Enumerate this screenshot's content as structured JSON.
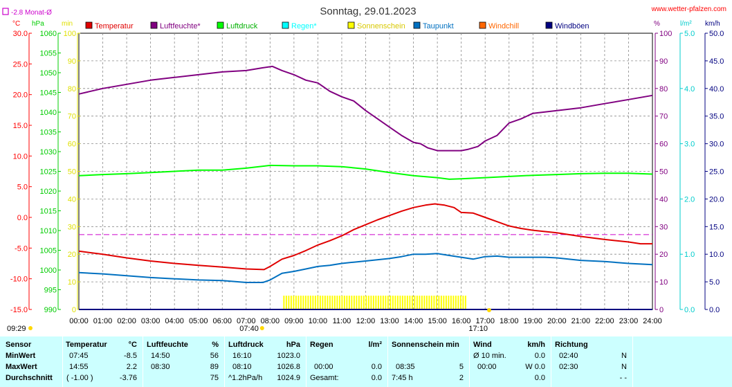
{
  "title": "Sonntag, 29.01.2023",
  "site": "www.wetter-pfalzen.com",
  "monat_label": "-2.8 Monat-Ø",
  "units": {
    "c": "°C",
    "hpa": "hPa",
    "min": "min",
    "pct": "%",
    "lm2": "l/m²",
    "kmh": "km/h"
  },
  "sunrise": "07:40",
  "sunset": "17:10",
  "time_labels": [
    "00:00",
    "01:00",
    "02:00",
    "03:00",
    "04:00",
    "05:00",
    "06:00",
    "07:00",
    "08:00",
    "09:00",
    "10:00",
    "11:00",
    "12:00",
    "13:00",
    "14:00",
    "15:00",
    "16:00",
    "17:00",
    "18:00",
    "19:00",
    "20:00",
    "21:00",
    "22:00",
    "23:00",
    "24:00"
  ],
  "legend": [
    {
      "label": "Temperatur",
      "color": "#e00000"
    },
    {
      "label": "Luftfeuchte*",
      "color": "#800080"
    },
    {
      "label": "Luftdruck",
      "color": "#00ff00"
    },
    {
      "label": "Regen*",
      "color": "#00ffff"
    },
    {
      "label": "Sonnenschein",
      "color": "#ffff00"
    },
    {
      "label": "Taupunkt",
      "color": "#0070c0"
    },
    {
      "label": "Windchill",
      "color": "#ff6600"
    },
    {
      "label": "Windböen",
      "color": "#000080"
    }
  ],
  "axis_ticks": {
    "temp": [
      "30.0",
      "25.0",
      "20.0",
      "15.0",
      "10.0",
      "5.0",
      "0.0",
      "-5.0",
      "-10.0",
      "-15.0"
    ],
    "hpa": [
      "1060",
      "1055",
      "1050",
      "1045",
      "1040",
      "1035",
      "1030",
      "1025",
      "1020",
      "1015",
      "1010",
      "1005",
      "1000",
      "995",
      "990"
    ],
    "min": [
      "100",
      "90",
      "80",
      "70",
      "60",
      "50",
      "40",
      "30",
      "20",
      "10",
      "0"
    ],
    "pct": [
      "100",
      "90",
      "80",
      "70",
      "60",
      "50",
      "40",
      "30",
      "20",
      "10",
      "0"
    ],
    "lm2": [
      "5.0",
      "4.0",
      "3.0",
      "2.0",
      "1.0",
      "0.0"
    ],
    "kmh": [
      "50.0",
      "45.0",
      "40.0",
      "35.0",
      "30.0",
      "25.0",
      "20.0",
      "15.0",
      "10.0",
      "5.0",
      "0.0"
    ]
  },
  "chart_data": {
    "type": "line",
    "title": "Sonntag, 29.01.2023",
    "x_range_hours": [
      0,
      24
    ],
    "axes": {
      "temperature_c": [
        -15,
        30
      ],
      "pressure_hpa": [
        990,
        1060
      ],
      "humidity_pct": [
        0,
        100
      ],
      "sunshine_min": [
        0,
        100
      ],
      "rain_lm2": [
        0,
        5
      ],
      "wind_kmh": [
        0,
        50
      ]
    },
    "grid": true,
    "month_average_temperature_c": -2.8,
    "series": [
      {
        "name": "Luftfeuchte*",
        "axis": "humidity_pct",
        "color": "#800080",
        "x": [
          0,
          1,
          2,
          3,
          4,
          5,
          6,
          7,
          7.7,
          8.1,
          8.5,
          9,
          9.5,
          10,
          10.5,
          11,
          11.5,
          12,
          12.5,
          13,
          13.5,
          14,
          14.3,
          14.6,
          15,
          15.5,
          16,
          16.3,
          16.7,
          17,
          17.5,
          18,
          18.5,
          19,
          20,
          21,
          22,
          23,
          24
        ],
        "y": [
          78,
          80,
          81.5,
          83,
          84,
          85,
          86,
          86.5,
          87.5,
          88,
          86.5,
          85,
          83,
          82,
          79,
          77,
          75.5,
          72,
          69,
          66,
          63,
          60.5,
          60,
          58.5,
          57.5,
          57.5,
          57.5,
          58,
          59,
          61,
          63,
          67.5,
          69,
          71,
          72,
          73,
          74.5,
          76,
          77.5
        ]
      },
      {
        "name": "Luftdruck",
        "axis": "pressure_hpa",
        "color": "#00ff00",
        "x": [
          0,
          1,
          2,
          3,
          4,
          5,
          6,
          7,
          8,
          9,
          10,
          11,
          12,
          13,
          14,
          15,
          15.5,
          16,
          17,
          18,
          19,
          20,
          21,
          22,
          23,
          24
        ],
        "y": [
          1023.9,
          1024.2,
          1024.4,
          1024.7,
          1025.0,
          1025.3,
          1025.3,
          1025.8,
          1026.5,
          1026.4,
          1026.4,
          1026.2,
          1025.6,
          1024.7,
          1023.9,
          1023.4,
          1023.0,
          1023.1,
          1023.4,
          1023.7,
          1024.0,
          1024.2,
          1024.4,
          1024.5,
          1024.5,
          1024.3
        ]
      },
      {
        "name": "Temperatur",
        "axis": "temperature_c",
        "color": "#e00000",
        "x": [
          0,
          1,
          2,
          3,
          4,
          5,
          6,
          7,
          7.75,
          8,
          8.5,
          9,
          9.5,
          10,
          10.5,
          11,
          11.5,
          12,
          12.5,
          13,
          13.5,
          14,
          14.5,
          14.9,
          15.3,
          15.7,
          16,
          16.5,
          17,
          17.5,
          18,
          18.5,
          19,
          20,
          21,
          22,
          23,
          23.5,
          24
        ],
        "y": [
          -5.5,
          -6.0,
          -6.6,
          -7.1,
          -7.5,
          -7.8,
          -8.1,
          -8.4,
          -8.5,
          -8.0,
          -6.8,
          -6.2,
          -5.4,
          -4.5,
          -3.8,
          -3.0,
          -2.0,
          -1.2,
          -0.4,
          0.3,
          1.0,
          1.6,
          2.0,
          2.2,
          2.0,
          1.6,
          0.8,
          0.7,
          0.0,
          -0.7,
          -1.4,
          -1.8,
          -2.1,
          -2.5,
          -3.1,
          -3.6,
          -4.0,
          -4.3,
          -4.3
        ]
      },
      {
        "name": "Taupunkt",
        "axis": "temperature_c",
        "color": "#0070c0",
        "x": [
          0,
          1,
          2,
          3,
          4,
          5,
          6,
          7,
          7.7,
          8,
          8.5,
          9,
          9.5,
          10,
          10.5,
          11,
          11.5,
          12,
          13,
          13.5,
          14,
          14.5,
          15,
          15.5,
          16,
          16.5,
          17,
          17.5,
          18,
          18.5,
          19,
          19.5,
          20,
          21,
          22,
          23,
          24
        ],
        "y": [
          -9.0,
          -9.2,
          -9.5,
          -9.8,
          -10.0,
          -10.2,
          -10.3,
          -10.6,
          -10.6,
          -10.2,
          -9.1,
          -8.8,
          -8.4,
          -8.0,
          -7.8,
          -7.5,
          -7.3,
          -7.1,
          -6.7,
          -6.4,
          -6.0,
          -6.0,
          -5.9,
          -6.2,
          -6.5,
          -6.8,
          -6.4,
          -6.3,
          -6.5,
          -6.5,
          -6.5,
          -6.5,
          -6.6,
          -7.0,
          -7.2,
          -7.5,
          -7.7
        ]
      },
      {
        "name": "Sonnenschein",
        "axis": "sunshine_min",
        "color": "#ffff00",
        "x": [
          8.58,
          16.25
        ],
        "y": [
          5,
          5
        ]
      },
      {
        "name": "Regen*",
        "axis": "rain_lm2",
        "color": "#00ffff",
        "x": [
          0,
          24
        ],
        "y": [
          0,
          0
        ]
      },
      {
        "name": "Windböen",
        "axis": "wind_kmh",
        "color": "#000080",
        "x": [
          0,
          24
        ],
        "y": [
          0,
          0
        ]
      }
    ]
  },
  "stats": {
    "sensor": {
      "head": "Sensor",
      "rows": [
        "MinWert",
        "MaxWert",
        "Durchschnitt"
      ]
    },
    "temp": {
      "head": "Temperatur",
      "unit": "°C",
      "min": [
        "07:45",
        "-8.5"
      ],
      "max": [
        "14:55",
        "2.2"
      ],
      "avg": [
        "( -1.00 )",
        "-3.76"
      ]
    },
    "hum": {
      "head": "Luftfeuchte",
      "unit": "%",
      "min": [
        "14:50",
        "56"
      ],
      "max": [
        "08:30",
        "89"
      ],
      "avg": [
        "",
        "75"
      ]
    },
    "press": {
      "head": "Luftdruck",
      "unit": "hPa",
      "min": [
        "16:10",
        "1023.0"
      ],
      "max": [
        "08:10",
        "1026.8"
      ],
      "avg": [
        "^1.2hPa/h",
        "1024.9"
      ]
    },
    "rain": {
      "head": "Regen",
      "unit": "l/m²",
      "min": [
        "",
        ""
      ],
      "max": [
        "00:00",
        "0.0"
      ],
      "avg": [
        "Gesamt:",
        "0.0"
      ]
    },
    "sun": {
      "head": "Sonnenschein min",
      "unit": "",
      "min": [
        "",
        ""
      ],
      "max": [
        "08:35",
        "5"
      ],
      "avg": [
        "7:45 h",
        "2"
      ]
    },
    "wind": {
      "head": "Wind",
      "unit": "km/h",
      "min": [
        "Ø 10 min.",
        "0.0"
      ],
      "max": [
        "00:00",
        "W 0.0"
      ],
      "avg": [
        "",
        "0.0"
      ]
    },
    "dir": {
      "head": "Richtung",
      "min": [
        "02:40",
        "N"
      ],
      "max": [
        "02:30",
        "N"
      ],
      "avg": [
        "",
        "- -"
      ]
    }
  },
  "footer_time": "09:29"
}
